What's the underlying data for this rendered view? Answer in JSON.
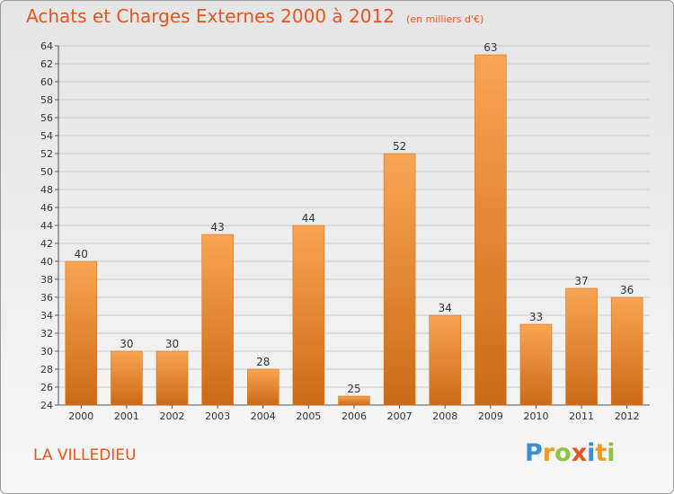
{
  "title": "Achats et Charges Externes 2000 à 2012",
  "unit": "(en milliers d'€)",
  "commune": "LA VILLEDIEU",
  "logo": {
    "letters": [
      "P",
      "r",
      "o",
      "x",
      "i",
      "t",
      "i"
    ],
    "colors": [
      "#3b8fd4",
      "#f39a1f",
      "#8fc43f",
      "#e8541c",
      "#3b8fd4",
      "#f39a1f",
      "#8fc43f"
    ]
  },
  "colors": {
    "accent": "#e8541c",
    "bar_top": "#f9a552",
    "bar_bottom": "#cc6a16",
    "grid": "#c8c8c8",
    "text": "#333333"
  },
  "chart_data": {
    "type": "bar",
    "categories": [
      "2000",
      "2001",
      "2002",
      "2003",
      "2004",
      "2005",
      "2006",
      "2007",
      "2008",
      "2009",
      "2010",
      "2011",
      "2012"
    ],
    "values": [
      40,
      30,
      30,
      43,
      28,
      44,
      25,
      52,
      34,
      63,
      33,
      37,
      36
    ],
    "ylim": [
      24,
      64
    ],
    "yticks": [
      24,
      26,
      28,
      30,
      32,
      34,
      36,
      38,
      40,
      42,
      44,
      46,
      48,
      50,
      52,
      54,
      56,
      58,
      60,
      62,
      64
    ],
    "grid": true,
    "legend": "none"
  }
}
